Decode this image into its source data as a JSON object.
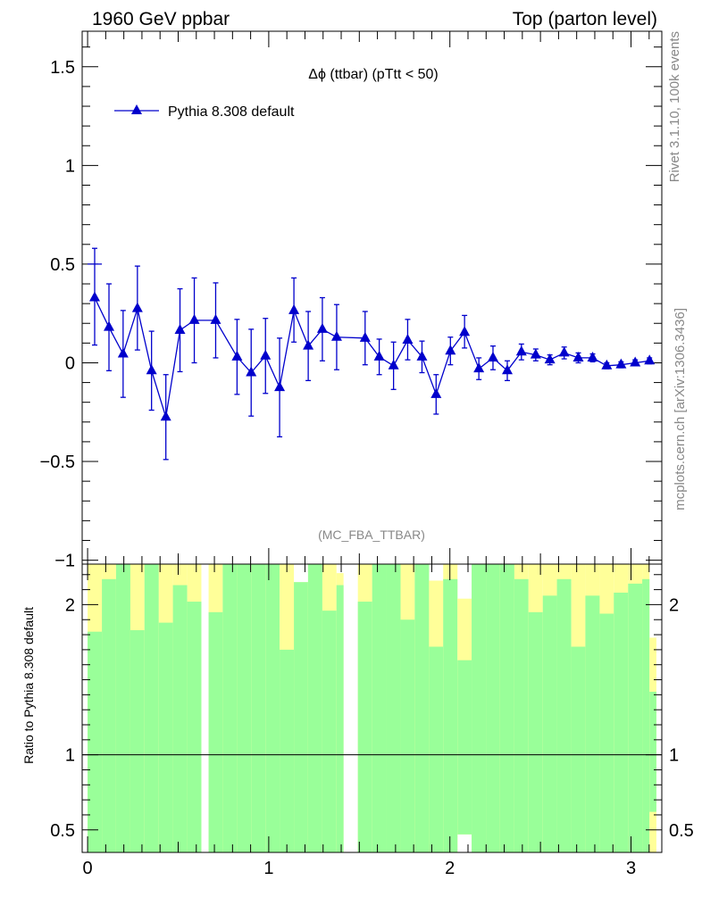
{
  "header": {
    "left": "1960 GeV ppbar",
    "right": "Top (parton level)"
  },
  "side_labels": {
    "rivet": "Rivet 3.1.10,  100k events",
    "mcplots": "mcplots.cern.ch [arXiv:1306.3436]"
  },
  "colors": {
    "series": "#0000cc",
    "band_inner": "#99ff99",
    "band_outer": "#ffff99"
  },
  "chart_data": [
    {
      "type": "line",
      "title": "Δϕ (ttbar) (pTtt < 50)",
      "watermark": "(MC_FBA_TTBAR)",
      "xlim": [
        -0.03,
        3.17
      ],
      "ylim": [
        -1.02,
        1.68
      ],
      "yticks": [
        -1,
        -0.5,
        0,
        0.5,
        1,
        1.5
      ],
      "yticklabels": [
        "−1",
        "−0.5",
        "0",
        "0.5",
        "1",
        "1.5"
      ],
      "legend": {
        "placement": "top-left"
      },
      "series": [
        {
          "name": "Pythia 8.308 default",
          "marker": "triangle",
          "x": [
            0.039,
            0.118,
            0.196,
            0.275,
            0.353,
            0.432,
            0.51,
            0.589,
            0.707,
            0.825,
            0.903,
            0.982,
            1.06,
            1.139,
            1.218,
            1.296,
            1.375,
            1.532,
            1.61,
            1.689,
            1.767,
            1.846,
            1.924,
            2.003,
            2.081,
            2.16,
            2.238,
            2.317,
            2.395,
            2.474,
            2.552,
            2.631,
            2.709,
            2.788,
            2.866,
            2.945,
            3.023,
            3.102
          ],
          "y": [
            0.33,
            0.18,
            0.045,
            0.275,
            -0.04,
            -0.275,
            0.165,
            0.215,
            0.215,
            0.03,
            -0.05,
            0.035,
            -0.125,
            0.265,
            0.085,
            0.17,
            0.13,
            0.125,
            0.03,
            -0.015,
            0.115,
            0.03,
            -0.16,
            0.06,
            0.155,
            -0.03,
            0.025,
            -0.04,
            0.055,
            0.04,
            0.015,
            0.05,
            0.025,
            0.025,
            -0.015,
            -0.01,
            0.0,
            0.01
          ],
          "err_lo": [
            0.24,
            0.22,
            0.22,
            0.21,
            0.2,
            0.215,
            0.21,
            0.215,
            0.19,
            0.19,
            0.22,
            0.19,
            0.25,
            0.16,
            0.175,
            0.16,
            0.165,
            0.135,
            0.09,
            0.12,
            0.1,
            0.08,
            0.1,
            0.07,
            0.08,
            0.055,
            0.06,
            0.05,
            0.04,
            0.03,
            0.025,
            0.03,
            0.025,
            0.02,
            0.015,
            0.015,
            0.015,
            0.015
          ],
          "err_hi": [
            0.25,
            0.22,
            0.22,
            0.215,
            0.2,
            0.215,
            0.21,
            0.215,
            0.19,
            0.19,
            0.22,
            0.19,
            0.25,
            0.165,
            0.175,
            0.16,
            0.165,
            0.135,
            0.09,
            0.12,
            0.105,
            0.08,
            0.1,
            0.07,
            0.085,
            0.055,
            0.06,
            0.05,
            0.04,
            0.03,
            0.025,
            0.03,
            0.025,
            0.02,
            0.015,
            0.015,
            0.015,
            0.015
          ]
        }
      ]
    },
    {
      "type": "area",
      "ylabel": "Ratio to Pythia 8.308 default",
      "xlim": [
        -0.03,
        3.17
      ],
      "ylim": [
        0.35,
        2.27
      ],
      "yticks": [
        0.5,
        1,
        2
      ],
      "yticklabels": [
        "0.5",
        "1",
        "2"
      ],
      "xticks": [
        0,
        1,
        2,
        3
      ],
      "xticklabels": [
        "0",
        "1",
        "2",
        "3"
      ],
      "reference_line": 1,
      "bins": [
        {
          "x0": 0.0,
          "x1": 0.079,
          "inner_top": 1.82,
          "outer_top": 2.27,
          "outer_bottom": 0.35
        },
        {
          "x0": 0.079,
          "x1": 0.157,
          "inner_top": 2.17,
          "outer_top": 2.27,
          "outer_bottom": 0.35
        },
        {
          "x0": 0.157,
          "x1": 0.236,
          "inner_top": 2.27,
          "outer_top": 2.27,
          "outer_bottom": 0.35
        },
        {
          "x0": 0.236,
          "x1": 0.314,
          "inner_top": 1.83,
          "outer_top": 2.27,
          "outer_bottom": 0.35
        },
        {
          "x0": 0.314,
          "x1": 0.393,
          "inner_top": 2.27,
          "outer_top": 2.27,
          "outer_bottom": 0.35
        },
        {
          "x0": 0.393,
          "x1": 0.471,
          "inner_top": 1.88,
          "outer_top": 2.27,
          "outer_bottom": 0.35
        },
        {
          "x0": 0.471,
          "x1": 0.55,
          "inner_top": 2.13,
          "outer_top": 2.27,
          "outer_bottom": 0.35
        },
        {
          "x0": 0.55,
          "x1": 0.628,
          "inner_top": 2.02,
          "outer_top": 2.27,
          "outer_bottom": 0.35
        },
        {
          "x0": 0.668,
          "x1": 0.746,
          "inner_top": 1.95,
          "outer_top": 2.27,
          "outer_bottom": 0.35
        },
        {
          "x0": 0.746,
          "x1": 0.825,
          "inner_top": 2.27,
          "outer_top": 2.27,
          "outer_bottom": 0.35
        },
        {
          "x0": 0.825,
          "x1": 0.903,
          "inner_top": 2.27,
          "outer_top": 2.27,
          "outer_bottom": 0.35
        },
        {
          "x0": 0.903,
          "x1": 0.982,
          "inner_top": 2.27,
          "outer_top": 2.27,
          "outer_bottom": 0.35
        },
        {
          "x0": 0.982,
          "x1": 1.06,
          "inner_top": 2.27,
          "outer_top": 2.27,
          "outer_bottom": 0.35
        },
        {
          "x0": 1.06,
          "x1": 1.139,
          "inner_top": 1.7,
          "outer_top": 2.27,
          "outer_bottom": 0.35
        },
        {
          "x0": 1.139,
          "x1": 1.217,
          "inner_top": 2.15,
          "outer_top": 2.15,
          "outer_bottom": 0.35
        },
        {
          "x0": 1.217,
          "x1": 1.296,
          "inner_top": 2.27,
          "outer_top": 2.27,
          "outer_bottom": 0.35
        },
        {
          "x0": 1.296,
          "x1": 1.374,
          "inner_top": 1.96,
          "outer_top": 2.27,
          "outer_bottom": 0.35
        },
        {
          "x0": 1.374,
          "x1": 1.413,
          "inner_top": 2.13,
          "outer_top": 2.21,
          "outer_bottom": 0.35
        },
        {
          "x0": 1.492,
          "x1": 1.571,
          "inner_top": 2.02,
          "outer_top": 2.27,
          "outer_bottom": 0.35
        },
        {
          "x0": 1.571,
          "x1": 1.649,
          "inner_top": 2.27,
          "outer_top": 2.27,
          "outer_bottom": 0.35
        },
        {
          "x0": 1.649,
          "x1": 1.728,
          "inner_top": 2.27,
          "outer_top": 2.27,
          "outer_bottom": 0.35
        },
        {
          "x0": 1.728,
          "x1": 1.806,
          "inner_top": 1.9,
          "outer_top": 2.27,
          "outer_bottom": 0.35
        },
        {
          "x0": 1.806,
          "x1": 1.885,
          "inner_top": 2.27,
          "outer_top": 2.27,
          "outer_bottom": 0.35
        },
        {
          "x0": 1.885,
          "x1": 1.963,
          "inner_top": 1.72,
          "outer_top": 2.16,
          "outer_bottom": 0.35
        },
        {
          "x0": 1.963,
          "x1": 2.042,
          "inner_top": 2.17,
          "outer_top": 2.27,
          "outer_bottom": 0.35
        },
        {
          "x0": 2.042,
          "x1": 2.12,
          "inner_top": 1.63,
          "outer_top": 2.04,
          "outer_bottom": 0.47
        },
        {
          "x0": 2.12,
          "x1": 2.199,
          "inner_top": 2.27,
          "outer_top": 2.27,
          "outer_bottom": 0.35
        },
        {
          "x0": 2.199,
          "x1": 2.277,
          "inner_top": 2.27,
          "outer_top": 2.27,
          "outer_bottom": 0.35
        },
        {
          "x0": 2.277,
          "x1": 2.356,
          "inner_top": 2.27,
          "outer_top": 2.27,
          "outer_bottom": 0.35
        },
        {
          "x0": 2.356,
          "x1": 2.434,
          "inner_top": 2.17,
          "outer_top": 2.27,
          "outer_bottom": 0.35
        },
        {
          "x0": 2.434,
          "x1": 2.513,
          "inner_top": 1.95,
          "outer_top": 2.27,
          "outer_bottom": 0.35
        },
        {
          "x0": 2.513,
          "x1": 2.591,
          "inner_top": 2.06,
          "outer_top": 2.27,
          "outer_bottom": 0.35
        },
        {
          "x0": 2.591,
          "x1": 2.67,
          "inner_top": 2.17,
          "outer_top": 2.27,
          "outer_bottom": 0.35
        },
        {
          "x0": 2.67,
          "x1": 2.748,
          "inner_top": 1.72,
          "outer_top": 2.27,
          "outer_bottom": 0.35
        },
        {
          "x0": 2.748,
          "x1": 2.827,
          "inner_top": 2.06,
          "outer_top": 2.27,
          "outer_bottom": 0.35
        },
        {
          "x0": 2.827,
          "x1": 2.905,
          "inner_top": 1.94,
          "outer_top": 2.27,
          "outer_bottom": 0.35
        },
        {
          "x0": 2.905,
          "x1": 2.984,
          "inner_top": 2.08,
          "outer_top": 2.27,
          "outer_bottom": 0.35
        },
        {
          "x0": 2.984,
          "x1": 3.062,
          "inner_top": 2.14,
          "outer_top": 2.27,
          "outer_bottom": 0.35
        },
        {
          "x0": 3.062,
          "x1": 3.102,
          "inner_top": 2.17,
          "outer_top": 2.27,
          "outer_bottom": 0.35
        },
        {
          "x0": 3.102,
          "x1": 3.14,
          "inner_top": 1.42,
          "outer_top": 1.78,
          "outer_bottom": 0.35,
          "inner_bottom": 0.62
        }
      ]
    }
  ]
}
